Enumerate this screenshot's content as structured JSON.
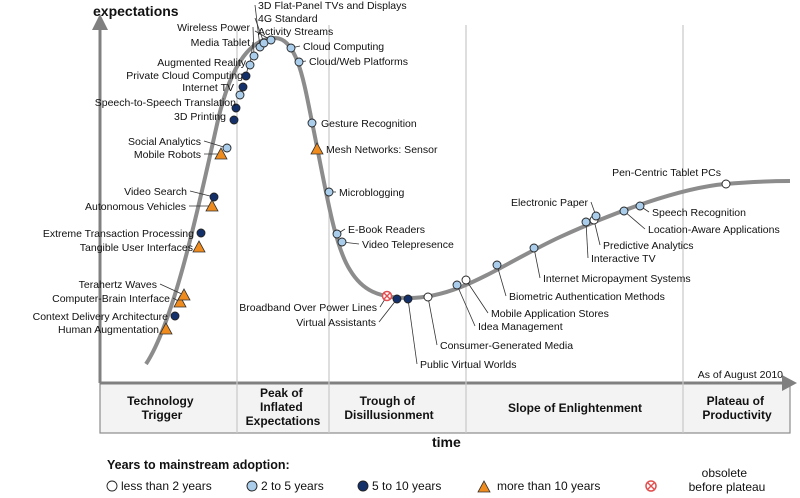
{
  "axes": {
    "y_label": "expectations",
    "x_label": "time",
    "as_of": "As of August 2010"
  },
  "phases": [
    [
      "Technology",
      "Trigger"
    ],
    [
      "Peak of",
      "Inflated",
      "Expectations"
    ],
    [
      "Trough of",
      "Disillusionment"
    ],
    [
      "Slope of Enlightenment"
    ],
    [
      "Plateau of",
      "Productivity"
    ]
  ],
  "legend": {
    "title": "Years to mainstream adoption:",
    "items": [
      {
        "key": "lt2",
        "label": "less than 2 years"
      },
      {
        "key": "2to5",
        "label": "2 to 5 years"
      },
      {
        "key": "5to10",
        "label": "5 to 10 years"
      },
      {
        "key": "gt10",
        "label": "more than 10 years"
      },
      {
        "key": "obsolete",
        "label": "obsolete",
        "label2": "before plateau"
      }
    ]
  },
  "colors": {
    "curve": "#8c8c8c",
    "lt2": "#ffffff",
    "2to5": "#a9cdea",
    "5to10": "#14306b",
    "gt10": "#f08c1e",
    "obsolete": "#e05050",
    "leader": "#333333",
    "divider": "#c8c8c8",
    "axis": "#808080"
  },
  "technologies": [
    {
      "name": "Human Augmentation",
      "adoption": "gt10"
    },
    {
      "name": "Context Delivery Architecture",
      "adoption": "5to10"
    },
    {
      "name": "Computer-Brain Interface",
      "adoption": "gt10"
    },
    {
      "name": "Terahertz Waves",
      "adoption": "gt10"
    },
    {
      "name": "Tangible User Interfaces",
      "adoption": "gt10"
    },
    {
      "name": "Extreme Transaction Processing",
      "adoption": "5to10"
    },
    {
      "name": "Autonomous Vehicles",
      "adoption": "gt10"
    },
    {
      "name": "Video Search",
      "adoption": "5to10"
    },
    {
      "name": "Mobile Robots",
      "adoption": "gt10"
    },
    {
      "name": "Social Analytics",
      "adoption": "2to5"
    },
    {
      "name": "3D Printing",
      "adoption": "5to10"
    },
    {
      "name": "Speech-to-Speech Translation",
      "adoption": "5to10"
    },
    {
      "name": "Internet TV",
      "adoption": "2to5"
    },
    {
      "name": "Private Cloud Computing",
      "adoption": "5to10"
    },
    {
      "name": "Augmented Reality",
      "adoption": "5to10"
    },
    {
      "name": "Media Tablet",
      "adoption": "2to5"
    },
    {
      "name": "Wireless Power",
      "adoption": "2to5"
    },
    {
      "name": "3D Flat-Panel TVs and Displays",
      "adoption": "2to5"
    },
    {
      "name": "4G Standard",
      "adoption": "2to5"
    },
    {
      "name": "Activity Streams",
      "adoption": "2to5"
    },
    {
      "name": "Cloud Computing",
      "adoption": "2to5"
    },
    {
      "name": "Cloud/Web Platforms",
      "adoption": "2to5"
    },
    {
      "name": "Gesture Recognition",
      "adoption": "2to5"
    },
    {
      "name": "Mesh Networks: Sensor",
      "adoption": "gt10"
    },
    {
      "name": "Microblogging",
      "adoption": "2to5"
    },
    {
      "name": "E-Book Readers",
      "adoption": "2to5"
    },
    {
      "name": "Video Telepresence",
      "adoption": "2to5"
    },
    {
      "name": "Broadband Over Power Lines",
      "adoption": "obsolete"
    },
    {
      "name": "Virtual Assistants",
      "adoption": "5to10"
    },
    {
      "name": "Public Virtual Worlds",
      "adoption": "5to10"
    },
    {
      "name": "Consumer-Generated Media",
      "adoption": "lt2"
    },
    {
      "name": "Idea Management",
      "adoption": "2to5"
    },
    {
      "name": "Mobile Application Stores",
      "adoption": "lt2"
    },
    {
      "name": "Biometric Authentication Methods",
      "adoption": "2to5"
    },
    {
      "name": "Internet Micropayment Systems",
      "adoption": "2to5"
    },
    {
      "name": "Interactive TV",
      "adoption": "2to5"
    },
    {
      "name": "Predictive Analytics",
      "adoption": "lt2"
    },
    {
      "name": "Electronic Paper",
      "adoption": "2to5"
    },
    {
      "name": "Location-Aware Applications",
      "adoption": "2to5"
    },
    {
      "name": "Speech Recognition",
      "adoption": "2to5"
    },
    {
      "name": "Pen-Centric Tablet PCs",
      "adoption": "lt2"
    }
  ]
}
